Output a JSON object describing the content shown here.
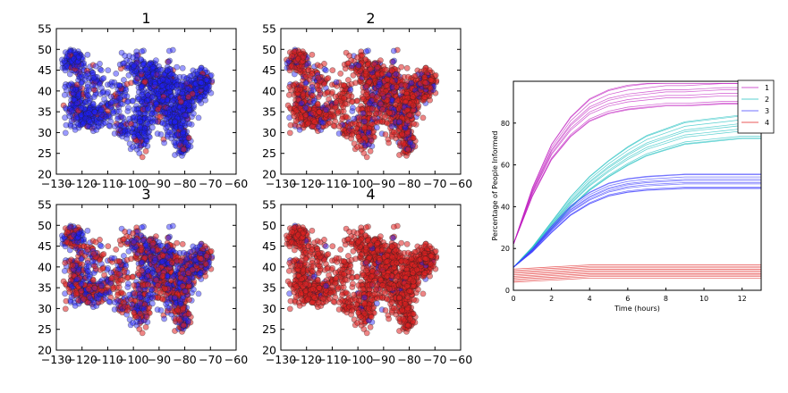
{
  "chart_data": [
    {
      "type": "scatter",
      "title": "1",
      "xlim": [
        -130,
        -60
      ],
      "ylim": [
        20,
        55
      ],
      "xticks": [
        -130,
        -120,
        -110,
        -100,
        -90,
        -80,
        -70,
        -60
      ],
      "yticks": [
        20,
        25,
        30,
        35,
        40,
        45,
        50,
        55
      ],
      "series": [
        {
          "color": "#2020ff",
          "values": "dense scatter of point locations (mostly blue)"
        },
        {
          "color": "#e02020",
          "values": "sparse red points"
        }
      ],
      "red_fraction": 0.08
    },
    {
      "type": "scatter",
      "title": "2",
      "xlim": [
        -130,
        -60
      ],
      "ylim": [
        20,
        55
      ],
      "xticks": [
        -130,
        -120,
        -110,
        -100,
        -90,
        -80,
        -70,
        -60
      ],
      "yticks": [
        20,
        25,
        30,
        35,
        40,
        45,
        50,
        55
      ],
      "series": [
        {
          "color": "#2020ff",
          "values": "blue points"
        },
        {
          "color": "#e02020",
          "values": "red points"
        }
      ],
      "red_fraction": 0.78
    },
    {
      "type": "scatter",
      "title": "3",
      "xlim": [
        -130,
        -60
      ],
      "ylim": [
        20,
        55
      ],
      "xticks": [
        -130,
        -120,
        -110,
        -100,
        -90,
        -80,
        -70,
        -60
      ],
      "yticks": [
        20,
        25,
        30,
        35,
        40,
        45,
        50,
        55
      ],
      "series": [
        {
          "color": "#2020ff",
          "values": "blue points"
        },
        {
          "color": "#e02020",
          "values": "red points"
        }
      ],
      "red_fraction": 0.5
    },
    {
      "type": "scatter",
      "title": "4",
      "xlim": [
        -130,
        -60
      ],
      "ylim": [
        20,
        55
      ],
      "xticks": [
        -130,
        -120,
        -110,
        -100,
        -90,
        -80,
        -70,
        -60
      ],
      "yticks": [
        20,
        25,
        30,
        35,
        40,
        45,
        50,
        55
      ],
      "series": [
        {
          "color": "#2020ff",
          "values": "blue points"
        },
        {
          "color": "#e02020",
          "values": "red points"
        }
      ],
      "red_fraction": 0.95
    },
    {
      "type": "line",
      "title": "",
      "xlabel": "Time (hours)",
      "ylabel": "Percentage of People Informed",
      "xlim": [
        0,
        13
      ],
      "ylim": [
        0,
        100
      ],
      "xticks": [
        0,
        2,
        4,
        6,
        8,
        10,
        12
      ],
      "yticks": [
        0,
        20,
        40,
        60,
        80
      ],
      "legend": {
        "placement": "top-right",
        "entries": [
          "1",
          "2",
          "3",
          "4"
        ]
      },
      "x": [
        0,
        1,
        2,
        3,
        4,
        5,
        6,
        7,
        8,
        9,
        10,
        11,
        12,
        13
      ],
      "series": [
        {
          "name": "1",
          "color": "#c020c0",
          "values": [
            22,
            47,
            66,
            78,
            86,
            90,
            92,
            93,
            94,
            94,
            94.5,
            95,
            95,
            95
          ]
        },
        {
          "name": "2",
          "color": "#20c0c0",
          "values": [
            11,
            20,
            31,
            42,
            51,
            58,
            64,
            69,
            72,
            75,
            76,
            77,
            78,
            78
          ]
        },
        {
          "name": "3",
          "color": "#4040ff",
          "values": [
            11,
            19,
            29,
            38,
            44,
            48,
            50,
            51,
            51.5,
            52,
            52,
            52,
            52,
            52
          ]
        },
        {
          "name": "4",
          "color": "#e02020",
          "values": [
            7,
            7.5,
            8,
            8.5,
            9,
            9,
            9,
            9,
            9,
            9,
            9,
            9,
            9,
            9
          ]
        }
      ]
    }
  ]
}
